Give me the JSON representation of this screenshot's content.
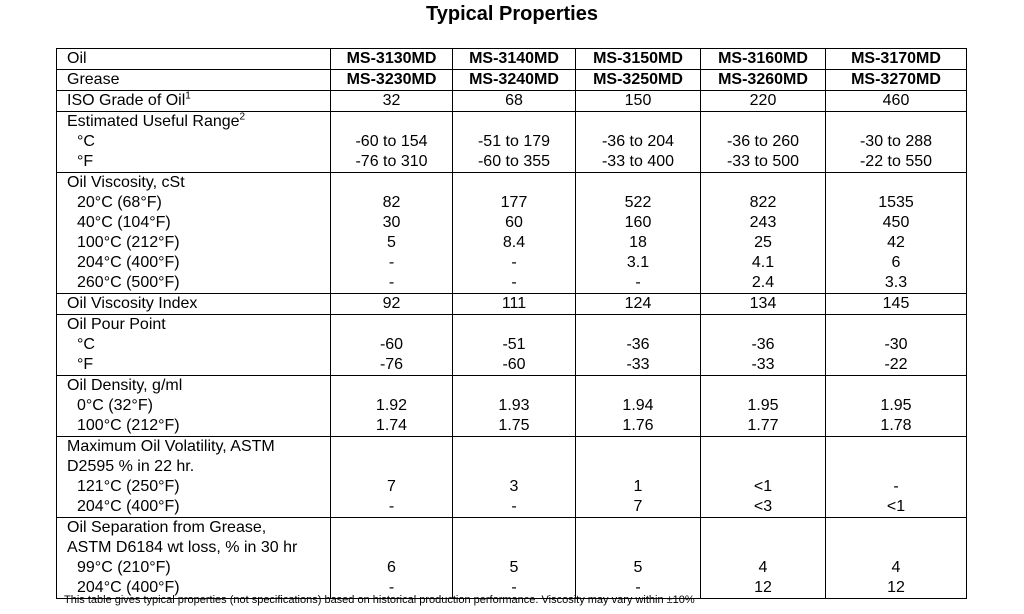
{
  "header": {
    "title": "Typical Properties"
  },
  "table": {
    "groups": [
      {
        "lines": [
          {
            "label": "Oil",
            "values": [
              "MS-3130MD",
              "MS-3140MD",
              "MS-3150MD",
              "MS-3160MD",
              "MS-3170MD"
            ]
          }
        ]
      },
      {
        "lines": [
          {
            "label": "Grease",
            "values": [
              "MS-3230MD",
              "MS-3240MD",
              "MS-3250MD",
              "MS-3260MD",
              "MS-3270MD"
            ]
          }
        ]
      },
      {
        "lines": [
          {
            "label": "ISO Grade of Oil",
            "note": "1",
            "values": [
              "32",
              "68",
              "150",
              "220",
              "460"
            ]
          }
        ]
      },
      {
        "lines": [
          {
            "label": "Estimated Useful Range",
            "note": "2"
          },
          {
            "label": "°C",
            "values": [
              "-60 to 154",
              "-51 to 179",
              "-36 to 204",
              "-36 to 260",
              "-30 to 288"
            ]
          },
          {
            "label": "°F",
            "values": [
              "-76 to 310",
              "-60 to 355",
              "-33 to 400",
              "-33 to 500",
              "-22 to 550"
            ]
          }
        ]
      },
      {
        "lines": [
          {
            "label": "Oil Viscosity, cSt"
          },
          {
            "label": "20°C (68°F)",
            "values": [
              "82",
              "177",
              "522",
              "822",
              "1535"
            ]
          },
          {
            "label": "40°C (104°F)",
            "values": [
              "30",
              "60",
              "160",
              "243",
              "450"
            ]
          },
          {
            "label": "100°C (212°F)",
            "values": [
              "5",
              "8.4",
              "18",
              "25",
              "42"
            ]
          },
          {
            "label": "204°C (400°F)",
            "values": [
              "-",
              "-",
              "3.1",
              "4.1",
              "6"
            ]
          },
          {
            "label": "260°C (500°F)",
            "values": [
              "-",
              "-",
              "-",
              "2.4",
              "3.3"
            ]
          }
        ]
      },
      {
        "lines": [
          {
            "label": "Oil Viscosity Index",
            "values": [
              "92",
              "111",
              "124",
              "134",
              "145"
            ]
          }
        ]
      },
      {
        "lines": [
          {
            "label": "Oil Pour Point"
          },
          {
            "label": "°C",
            "values": [
              "-60",
              "-51",
              "-36",
              "-36",
              "-30"
            ]
          },
          {
            "label": "°F",
            "values": [
              "-76",
              "-60",
              "-33",
              "-33",
              "-22"
            ]
          }
        ]
      },
      {
        "lines": [
          {
            "label": "Oil Density, g/ml"
          },
          {
            "label": "0°C (32°F)",
            "values": [
              "1.92",
              "1.93",
              "1.94",
              "1.95",
              "1.95"
            ]
          },
          {
            "label": "100°C (212°F)",
            "values": [
              "1.74",
              "1.75",
              "1.76",
              "1.77",
              "1.78"
            ]
          }
        ]
      },
      {
        "lines": [
          {
            "label": "Maximum Oil Volatility, ASTM"
          },
          {
            "label": "D2595 % in 22 hr."
          },
          {
            "label": "121°C (250°F)",
            "values": [
              "7",
              "3",
              "1",
              "<1",
              "-"
            ]
          },
          {
            "label": "204°C (400°F)",
            "values": [
              "-",
              "-",
              "7",
              "<3",
              "<1"
            ]
          }
        ]
      },
      {
        "lines": [
          {
            "label": "Oil Separation from Grease,"
          },
          {
            "label": "ASTM D6184 wt loss, % in 30 hr"
          },
          {
            "label": "99°C (210°F)",
            "values": [
              "6",
              "5",
              "5",
              "4",
              "4"
            ]
          },
          {
            "label": "204°C (400°F)",
            "values": [
              "-",
              "-",
              "-",
              "12",
              "12"
            ]
          }
        ]
      }
    ]
  },
  "footnote": "This table gives typical properties (not specifications) based on historical production performance. Viscosity may vary within ±10%"
}
